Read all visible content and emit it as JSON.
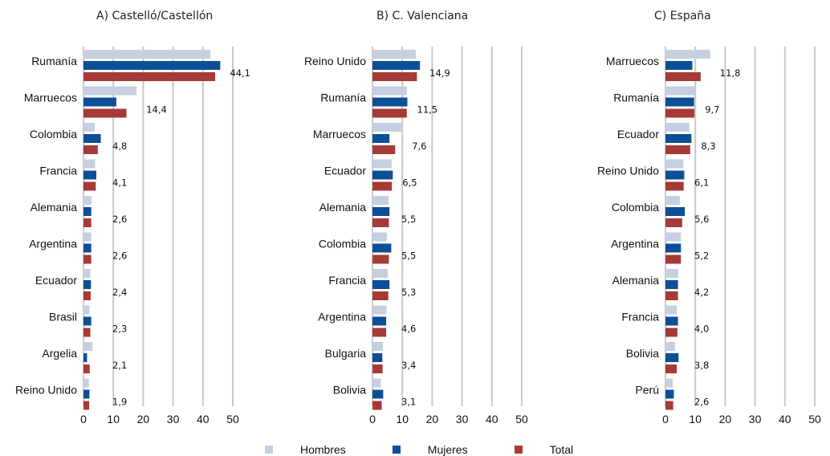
{
  "colors": {
    "hombres": "#c5cfe0",
    "mujeres": "#0d4f96",
    "total": "#a63a36",
    "grid": "#c8c8c8"
  },
  "legend": [
    {
      "key": "hombres",
      "label": "Hombres"
    },
    {
      "key": "mujeres",
      "label": "Mujeres"
    },
    {
      "key": "total",
      "label": "Total"
    }
  ],
  "chart_data": [
    {
      "type": "bar",
      "orientation": "horizontal",
      "title": "A) Castelló/Castellón",
      "categories": [
        "Rumanía",
        "Marruecos",
        "Colombia",
        "Francia",
        "Alemania",
        "Argentina",
        "Ecuador",
        "Brasil",
        "Argelia",
        "Reino Unido"
      ],
      "series": [
        {
          "name": "Hombres",
          "values": [
            42.5,
            17.8,
            3.8,
            3.9,
            2.7,
            2.6,
            2.3,
            2.0,
            3.0,
            1.8
          ]
        },
        {
          "name": "Mujeres",
          "values": [
            45.8,
            11.0,
            5.8,
            4.3,
            2.6,
            2.6,
            2.5,
            2.6,
            1.2,
            2.0
          ]
        },
        {
          "name": "Total",
          "values": [
            44.1,
            14.4,
            4.8,
            4.1,
            2.6,
            2.6,
            2.4,
            2.3,
            2.1,
            1.9
          ]
        }
      ],
      "value_labels": [
        "44,1",
        "14,4",
        "4,8",
        "4,1",
        "2,6",
        "2,6",
        "2,4",
        "2,3",
        "2,1",
        "1,9"
      ],
      "xlim": [
        0,
        50
      ],
      "xticks": [
        "0",
        "10",
        "20",
        "30",
        "40",
        "50"
      ],
      "grid": true
    },
    {
      "type": "bar",
      "orientation": "horizontal",
      "title": "B) C. Valenciana",
      "categories": [
        "Reino Unido",
        "Rumanía",
        "Marruecos",
        "Ecuador",
        "Alemania",
        "Colombia",
        "Francia",
        "Argentina",
        "Bulgaria",
        "Bolivia"
      ],
      "series": [
        {
          "name": "Hombres",
          "values": [
            14.5,
            11.5,
            10.0,
            6.4,
            5.4,
            4.8,
            5.1,
            4.7,
            3.5,
            2.8
          ]
        },
        {
          "name": "Mujeres",
          "values": [
            15.9,
            11.7,
            5.7,
            6.8,
            5.7,
            6.3,
            5.7,
            4.6,
            3.3,
            3.6
          ]
        },
        {
          "name": "Total",
          "values": [
            14.9,
            11.5,
            7.6,
            6.5,
            5.5,
            5.5,
            5.3,
            4.6,
            3.4,
            3.1
          ]
        }
      ],
      "value_labels": [
        "14,9",
        "11,5",
        "7,6",
        "6,5",
        "5,5",
        "5,5",
        "5,3",
        "4,6",
        "3,4",
        "3,1"
      ],
      "xlim": [
        0,
        50
      ],
      "xticks": [
        "0",
        "10",
        "20",
        "30",
        "40",
        "50"
      ],
      "grid": true
    },
    {
      "type": "bar",
      "orientation": "horizontal",
      "title": "C) España",
      "categories": [
        "Marruecos",
        "Rumanía",
        "Ecuador",
        "Reino Unido",
        "Colombia",
        "Argentina",
        "Alemania",
        "Francia",
        "Bolivia",
        "Perú"
      ],
      "series": [
        {
          "name": "Hombres",
          "values": [
            15.0,
            10.0,
            8.0,
            6.0,
            4.8,
            5.2,
            4.3,
            3.8,
            3.2,
            2.4
          ]
        },
        {
          "name": "Mujeres",
          "values": [
            9.0,
            9.6,
            8.7,
            6.3,
            6.5,
            5.2,
            4.2,
            4.2,
            4.4,
            2.8
          ]
        },
        {
          "name": "Total",
          "values": [
            11.8,
            9.7,
            8.3,
            6.1,
            5.6,
            5.2,
            4.2,
            4.0,
            3.8,
            2.6
          ]
        }
      ],
      "value_labels": [
        "11,8",
        "9,7",
        "8,3",
        "6,1",
        "5,6",
        "5,2",
        "4,2",
        "4,0",
        "3,8",
        "2,6"
      ],
      "xlim": [
        0,
        50
      ],
      "xticks": [
        "0",
        "10",
        "20",
        "30",
        "40",
        "50"
      ],
      "grid": true
    }
  ]
}
